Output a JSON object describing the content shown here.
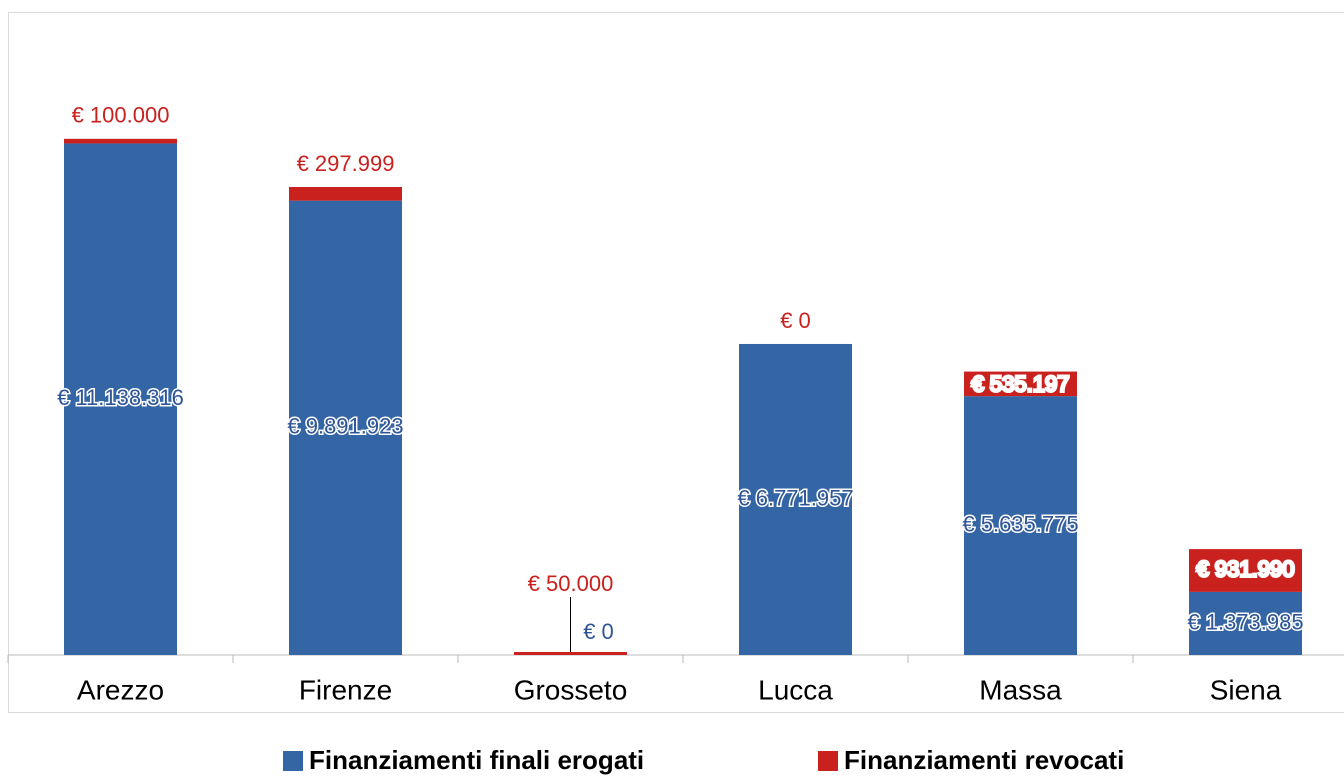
{
  "chart_data": {
    "type": "stacked-bar",
    "categories": [
      "Arezzo",
      "Firenze",
      "Grosseto",
      "Lucca",
      "Massa",
      "Siena"
    ],
    "series": [
      {
        "name": "Finanziamenti finali erogati",
        "color": "#3465a4",
        "values": [
          11138316,
          9891923,
          0,
          6771957,
          5635775,
          1373985
        ],
        "value_labels": [
          "€ 11.138.316",
          "€ 9.891.923",
          "€ 0",
          "€ 6.771.957",
          "€ 5.635.775",
          "€ 1.373.985"
        ]
      },
      {
        "name": "Finanziamenti revocati",
        "color": "#c9211e",
        "values": [
          100000,
          297999,
          50000,
          0,
          535197,
          931990
        ],
        "value_labels": [
          "€ 100.000",
          "€ 297.999",
          "€ 50.000",
          "€ 0",
          "€ 535.197",
          "€ 931.990"
        ]
      }
    ],
    "ylim": [
      0,
      14000000
    ]
  }
}
